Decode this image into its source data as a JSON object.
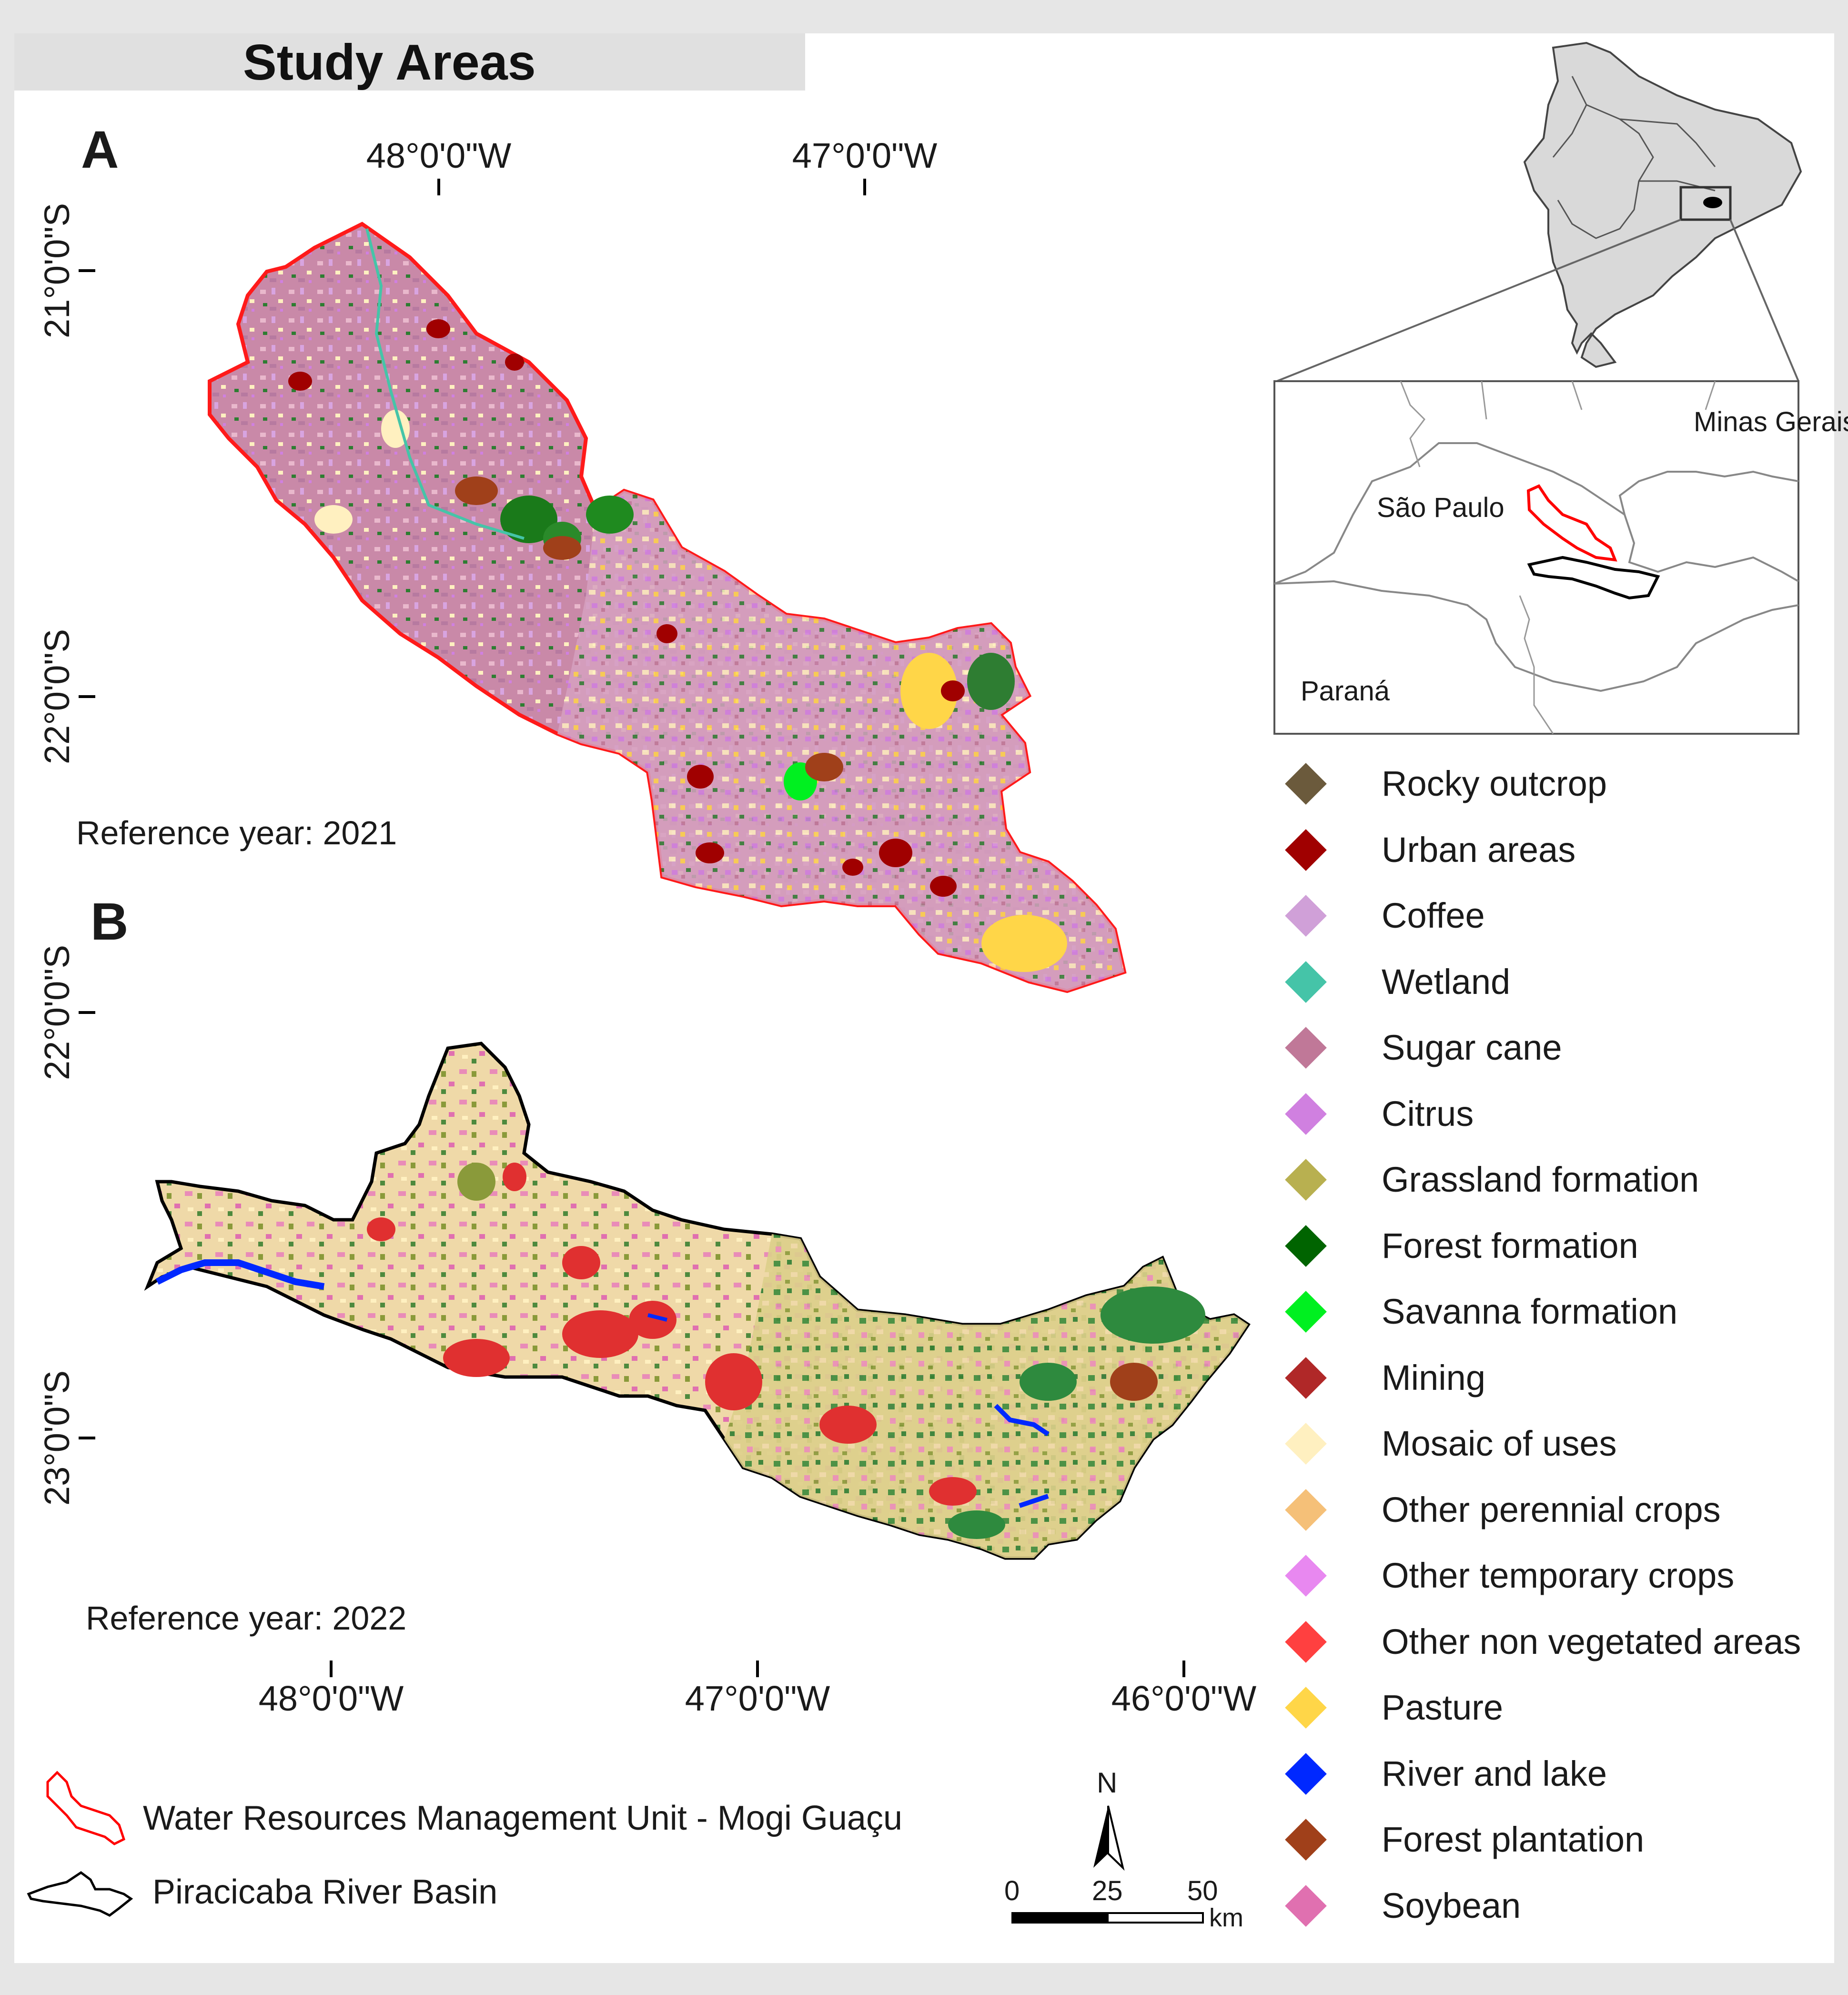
{
  "title": "Study Areas",
  "panels": {
    "a": {
      "letter": "A",
      "reference": "Reference year: 2021",
      "x_ticks": [
        "48°0'0\"W",
        "47°0'0\"W"
      ],
      "y_ticks": [
        "21°0'0\"S",
        "22°0'0\"S"
      ]
    },
    "b": {
      "letter": "B",
      "reference": "Reference year: 2022",
      "x_ticks": [
        "48°0'0\"W",
        "47°0'0\"W",
        "46°0'0\"W"
      ],
      "y_ticks": [
        "22°0'0\"S",
        "23°0'0\"S"
      ]
    }
  },
  "inset": {
    "states": [
      "São Paulo",
      "Minas Gerais",
      "Paraná"
    ]
  },
  "legend": [
    {
      "label": "Rocky outcrop",
      "color": "#6b5a3c"
    },
    {
      "label": "Urban areas",
      "color": "#a00000"
    },
    {
      "label": "Coffee",
      "color": "#d0a0d8"
    },
    {
      "label": "Wetland",
      "color": "#45c4a8"
    },
    {
      "label": "Sugar cane",
      "color": "#c07898"
    },
    {
      "label": "Citrus",
      "color": "#d080e0"
    },
    {
      "label": "Grassland formation",
      "color": "#b8b050"
    },
    {
      "label": "Forest formation",
      "color": "#006400"
    },
    {
      "label": "Savanna formation",
      "color": "#00f020"
    },
    {
      "label": "Mining",
      "color": "#b02828"
    },
    {
      "label": "Mosaic of uses",
      "color": "#fff0c0"
    },
    {
      "label": "Other perennial crops",
      "color": "#f5c078"
    },
    {
      "label": "Other temporary crops",
      "color": "#e888f0"
    },
    {
      "label": "Other non vegetated areas",
      "color": "#ff4040"
    },
    {
      "label": "Pasture",
      "color": "#ffd648"
    },
    {
      "label": "River and lake",
      "color": "#0028ff"
    },
    {
      "label": "Forest plantation",
      "color": "#a0401a"
    },
    {
      "label": "Soybean",
      "color": "#e070b0"
    }
  ],
  "boundaries": [
    {
      "label": "Water Resources Management Unit - Mogi Guaçu",
      "color": "#ff0000"
    },
    {
      "label": "Piracicaba River Basin",
      "color": "#000000"
    }
  ],
  "north_arrow": "N",
  "scale_bar": {
    "ticks": [
      "0",
      "25",
      "50"
    ],
    "unit": "km"
  }
}
